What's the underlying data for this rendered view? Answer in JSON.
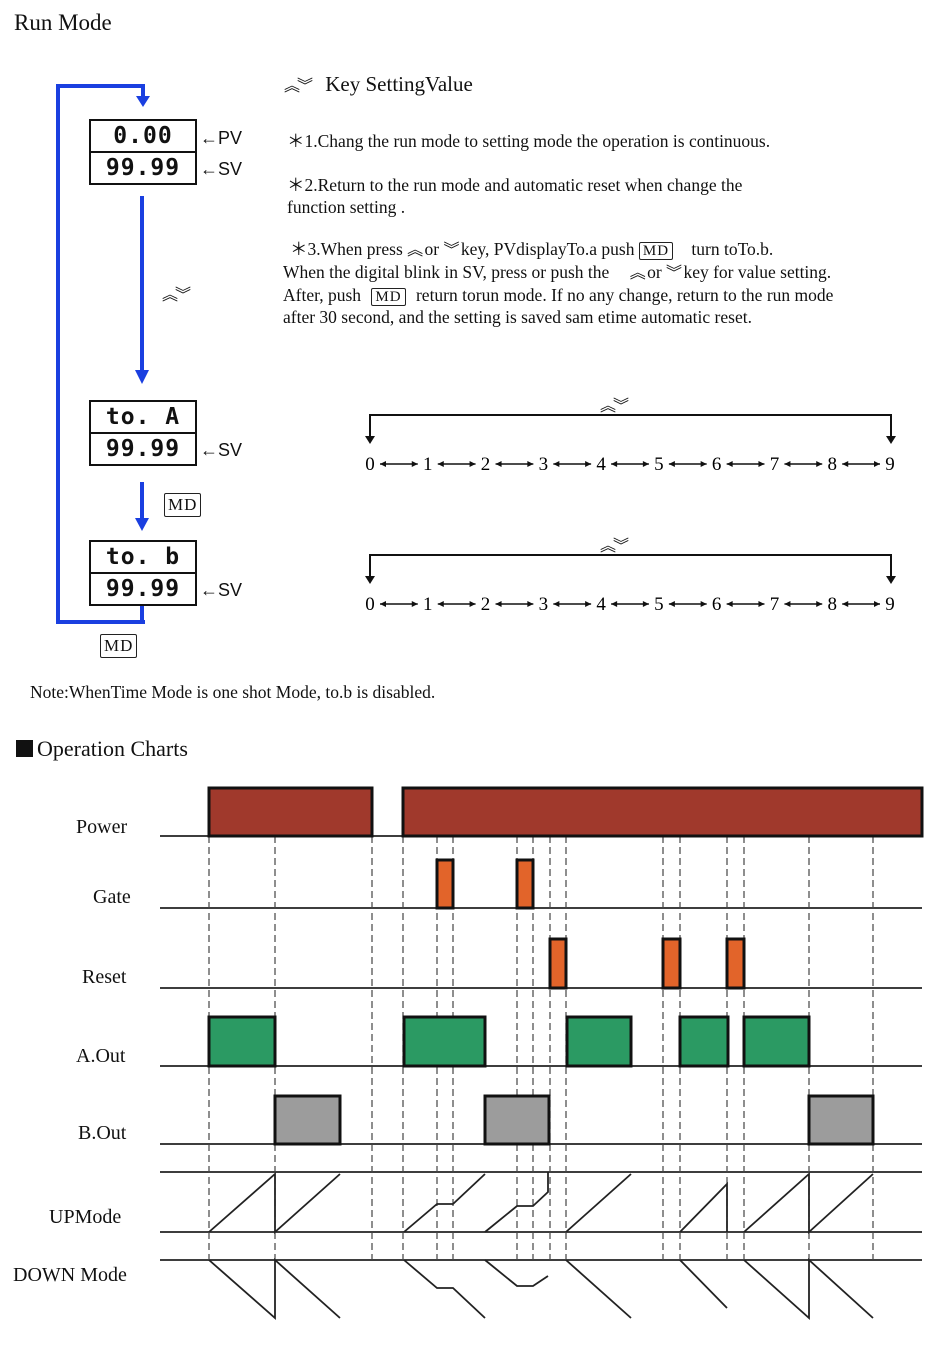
{
  "title": "Run Mode",
  "key_heading": "Key SettingValue",
  "key_glyph": "︽︾",
  "notes": {
    "n1": "＊1.Chang the run mode to setting mode the operation is continuous.",
    "n2a": "＊2.Return to the run mode and automatic reset when change the",
    "n2b": "function setting .",
    "n3a_pre": "＊3.When press",
    "n3a_or": "or",
    "n3a_mid": "key, PVdisplayTo.a push",
    "n3a_post": "turn toTo.b.",
    "n3b_pre": "When the digital blink in SV, press or push the",
    "n3b_or": "or",
    "n3b_post": "key for value setting.",
    "n3c_pre": "After, push",
    "n3c_post": "return torun mode. If no any change, return to the run mode",
    "n3d": "after 30 second, and the setting is saved sam etime automatic reset."
  },
  "md_label": "MD",
  "displays": [
    {
      "top": "0.00",
      "bottom": "99.99",
      "top_tag": "←PV",
      "bottom_tag": "←SV"
    },
    {
      "top": "to. A",
      "bottom": "99.99",
      "bottom_tag": "←SV"
    },
    {
      "top": "to. b",
      "bottom": "99.99",
      "bottom_tag": "←SV"
    }
  ],
  "digit_scale": [
    "0",
    "1",
    "2",
    "3",
    "4",
    "5",
    "6",
    "7",
    "8",
    "9"
  ],
  "note_line": "Note:WhenTime Mode is one shot Mode, to.b is disabled.",
  "operation_heading": "Operation Charts",
  "chart_rows": [
    "Power",
    "Gate",
    "Reset",
    "A.Out",
    "B.Out",
    "UPMode",
    "DOWN Mode"
  ],
  "colors": {
    "power": "#a0392c",
    "pulse": "#e2642a",
    "a_out": "#2b9a63",
    "b_out": "#9c9c9c",
    "flow_arrow": "#1a3fe0"
  }
}
